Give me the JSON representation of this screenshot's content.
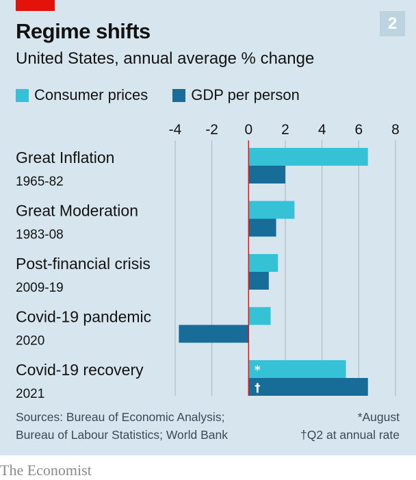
{
  "header": {
    "title": "Regime shifts",
    "subtitle": "United States, annual average % change",
    "chart_number": "2"
  },
  "legend": {
    "items": [
      {
        "label": "Consumer prices",
        "color": "#36c2d6"
      },
      {
        "label": "GDP per person",
        "color": "#176c98"
      }
    ]
  },
  "footer": {
    "sources_line1": "Sources: Bureau of Economic Analysis;",
    "sources_line2": "Bureau of Labour Statistics; World Bank",
    "note1": "*August",
    "note2": "†Q2 at annual rate"
  },
  "brand": "The Economist",
  "colors": {
    "background": "#d7e6ee",
    "consumer_prices": "#36c2d6",
    "gdp_per_person": "#176c98",
    "zero_line": "#e3120b",
    "gridline": "#a9b4bb"
  },
  "chart_data": {
    "type": "bar",
    "orientation": "horizontal",
    "title": "Regime shifts",
    "subtitle": "United States, annual average % change",
    "xlim": [
      -4,
      8
    ],
    "xticks": [
      -4,
      -2,
      0,
      2,
      4,
      6,
      8
    ],
    "xtick_labels": [
      "-4",
      "-2",
      "0",
      "2",
      "4",
      "6",
      "8"
    ],
    "grid": true,
    "legend_position": "top-left",
    "categories": [
      {
        "name": "Great Inflation",
        "period": "1965-82"
      },
      {
        "name": "Great Moderation",
        "period": "1983-08"
      },
      {
        "name": "Post-financial crisis",
        "period": "2009-19"
      },
      {
        "name": "Covid-19 pandemic",
        "period": "2020"
      },
      {
        "name": "Covid-19 recovery",
        "period": "2021"
      }
    ],
    "series": [
      {
        "name": "Consumer prices",
        "values": [
          6.5,
          2.5,
          1.6,
          1.2,
          5.3
        ],
        "annotations": [
          "",
          "",
          "",
          "",
          "*"
        ]
      },
      {
        "name": "GDP per person",
        "values": [
          2.0,
          1.5,
          1.1,
          -3.8,
          6.5
        ],
        "annotations": [
          "",
          "",
          "",
          "",
          "†"
        ]
      }
    ]
  }
}
